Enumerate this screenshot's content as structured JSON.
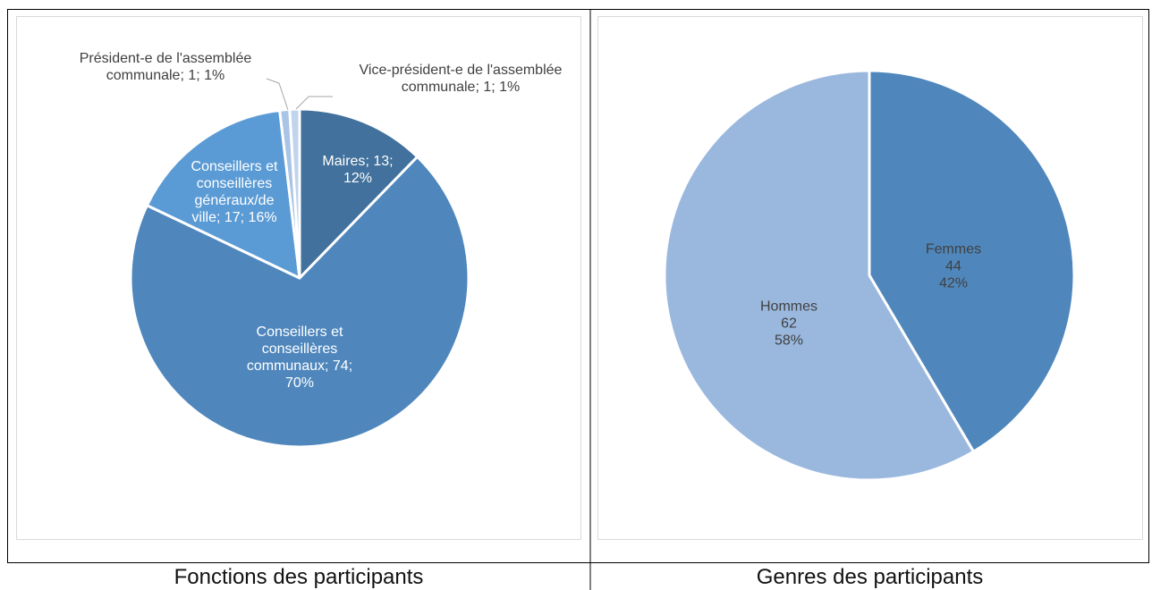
{
  "chart_data": [
    {
      "type": "pie",
      "title": "Fonctions des participants",
      "categories": [
        "Maires",
        "Conseillers et conseillères communaux",
        "Conseillers et conseillères généraux/de ville",
        "Président-e de l'assemblée communale",
        "Vice-président-e de l'assemblée communale"
      ],
      "values": [
        13,
        74,
        17,
        1,
        1
      ],
      "percentages": [
        {
          "value": 12,
          "label": "12%"
        },
        {
          "value": 70,
          "label": "70%"
        },
        {
          "value": 16,
          "label": "16%"
        },
        {
          "value": 1,
          "label": "1%"
        },
        {
          "value": 1,
          "label": "1%"
        }
      ],
      "separator": "; ",
      "colors": [
        "#41719c",
        "#4f87bd",
        "#5b9bd5",
        "#a9c4e6",
        "#c0d4ee"
      ]
    },
    {
      "type": "pie",
      "title": "Genres des participants",
      "categories": [
        "Femmes",
        "Hommes"
      ],
      "values": [
        44,
        62
      ],
      "percentages": [
        {
          "value": 42,
          "label": "42%"
        },
        {
          "value": 58,
          "label": "58%"
        }
      ],
      "colors": [
        "#4f87bd",
        "#9ab8de"
      ]
    }
  ]
}
